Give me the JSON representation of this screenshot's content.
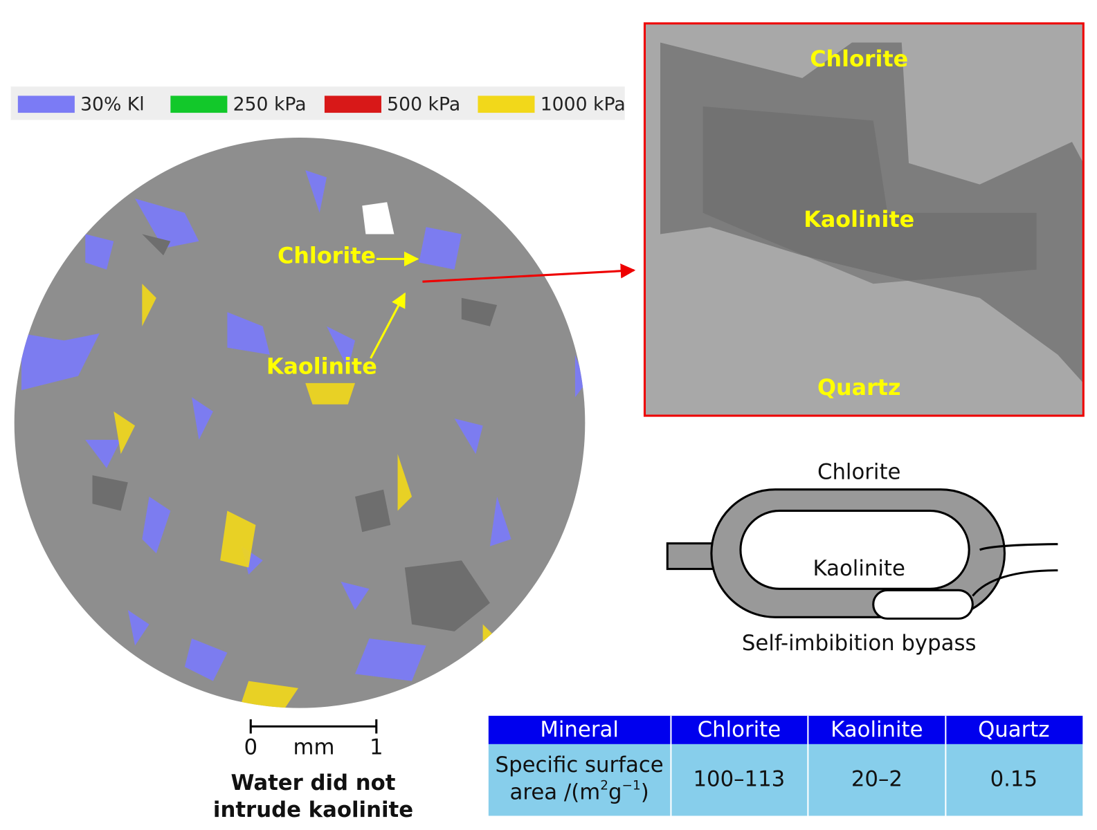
{
  "legend": [
    {
      "label": "30% Kl",
      "color": "#7b7bf5"
    },
    {
      "label": "250 kPa",
      "color": "#12c82a"
    },
    {
      "label": "500 kPa",
      "color": "#d81818"
    },
    {
      "label": "1000 kPa",
      "color": "#f2d81a"
    }
  ],
  "ct_image": {
    "labels": [
      "Chlorite",
      "Kaolinite"
    ]
  },
  "micrograph": {
    "labels": [
      "Chlorite",
      "Kaolinite",
      "Quartz"
    ]
  },
  "scale_bar": {
    "start": "0",
    "unit": "mm",
    "end": "1"
  },
  "caption": [
    "Water did not",
    "intrude kaolinite"
  ],
  "schematic": {
    "top": "Chlorite",
    "inner": "Kaolinite",
    "bottom": "Self-imbibition bypass"
  },
  "table": {
    "header": [
      "Mineral",
      "Chlorite",
      "Kaolinite",
      "Quartz"
    ],
    "row_label": {
      "line1": "Specific surface",
      "line2": [
        "area /(m",
        "2",
        "g",
        "−1",
        ")"
      ]
    },
    "row_values": [
      "100–113",
      "20–2",
      "0.15"
    ]
  }
}
